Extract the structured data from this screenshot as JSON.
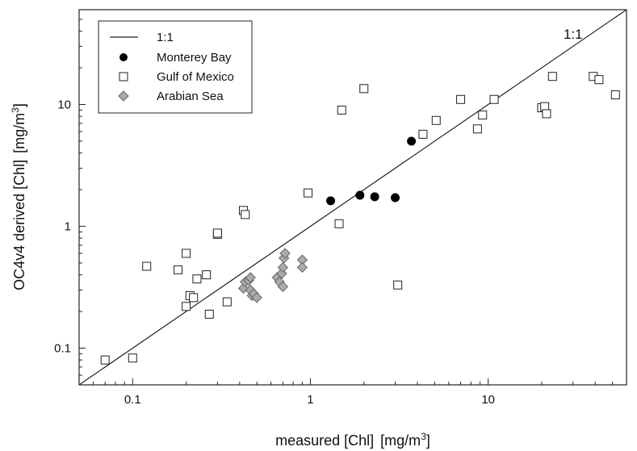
{
  "chart_data": {
    "type": "scatter",
    "x_scale": "log",
    "y_scale": "log",
    "xlim": [
      0.05,
      60
    ],
    "ylim": [
      0.05,
      60
    ],
    "x_ticks": [
      {
        "value": 0.1,
        "label": "0.1"
      },
      {
        "value": 1,
        "label": "1"
      },
      {
        "value": 10,
        "label": "10"
      }
    ],
    "y_ticks": [
      {
        "value": 0.1,
        "label": "0.1"
      },
      {
        "value": 1,
        "label": "1"
      },
      {
        "value": 10,
        "label": "10"
      }
    ],
    "xlabel": {
      "main": "measured [Chl]",
      "unit_open": "[mg/m",
      "unit_sup": "3",
      "unit_close": "]"
    },
    "ylabel": {
      "main": "OC4v4 derived [Chl]",
      "unit_open": "[mg/m",
      "unit_sup": "3",
      "unit_close": "]"
    },
    "annotation": "1:1",
    "grid": false,
    "legend_position": "top-left",
    "reference_line": {
      "name": "1:1",
      "x": [
        0.05,
        60
      ],
      "y": [
        0.05,
        60
      ]
    },
    "series": [
      {
        "name": "Monterey Bay",
        "marker": "circle",
        "fill": "#000000",
        "stroke": "#000000",
        "points": [
          [
            1.3,
            1.62
          ],
          [
            1.9,
            1.8
          ],
          [
            2.3,
            1.75
          ],
          [
            3.0,
            1.72
          ],
          [
            3.7,
            5.0
          ]
        ]
      },
      {
        "name": "Gulf of Mexico",
        "marker": "square",
        "fill": "#ffffff",
        "stroke": "#222222",
        "points": [
          [
            0.07,
            0.08
          ],
          [
            0.1,
            0.083
          ],
          [
            0.12,
            0.47
          ],
          [
            0.18,
            0.44
          ],
          [
            0.2,
            0.6
          ],
          [
            0.2,
            0.22
          ],
          [
            0.21,
            0.27
          ],
          [
            0.22,
            0.26
          ],
          [
            0.23,
            0.37
          ],
          [
            0.26,
            0.4
          ],
          [
            0.27,
            0.19
          ],
          [
            0.3,
            0.86
          ],
          [
            0.3,
            0.88
          ],
          [
            0.34,
            0.24
          ],
          [
            0.42,
            1.35
          ],
          [
            0.43,
            1.25
          ],
          [
            0.97,
            1.88
          ],
          [
            1.45,
            1.05
          ],
          [
            1.5,
            9.0
          ],
          [
            2.0,
            13.5
          ],
          [
            3.1,
            0.33
          ],
          [
            4.3,
            5.7
          ],
          [
            5.1,
            7.4
          ],
          [
            7.0,
            11.0
          ],
          [
            8.7,
            6.3
          ],
          [
            9.3,
            8.2
          ],
          [
            10.8,
            11.0
          ],
          [
            20.0,
            9.4
          ],
          [
            20.8,
            9.6
          ],
          [
            21.3,
            8.4
          ],
          [
            23.0,
            17.0
          ],
          [
            39.0,
            17.0
          ],
          [
            42.0,
            16.0
          ],
          [
            52.0,
            12.0
          ]
        ]
      },
      {
        "name": "Arabian Sea",
        "marker": "diamond",
        "fill": "#aaaaaa",
        "stroke": "#666666",
        "points": [
          [
            0.42,
            0.31
          ],
          [
            0.43,
            0.35
          ],
          [
            0.45,
            0.36
          ],
          [
            0.46,
            0.38
          ],
          [
            0.46,
            0.3
          ],
          [
            0.47,
            0.27
          ],
          [
            0.48,
            0.28
          ],
          [
            0.5,
            0.26
          ],
          [
            0.65,
            0.38
          ],
          [
            0.67,
            0.35
          ],
          [
            0.69,
            0.41
          ],
          [
            0.7,
            0.32
          ],
          [
            0.7,
            0.46
          ],
          [
            0.71,
            0.55
          ],
          [
            0.72,
            0.6
          ],
          [
            0.9,
            0.53
          ],
          [
            0.9,
            0.46
          ]
        ]
      }
    ]
  }
}
